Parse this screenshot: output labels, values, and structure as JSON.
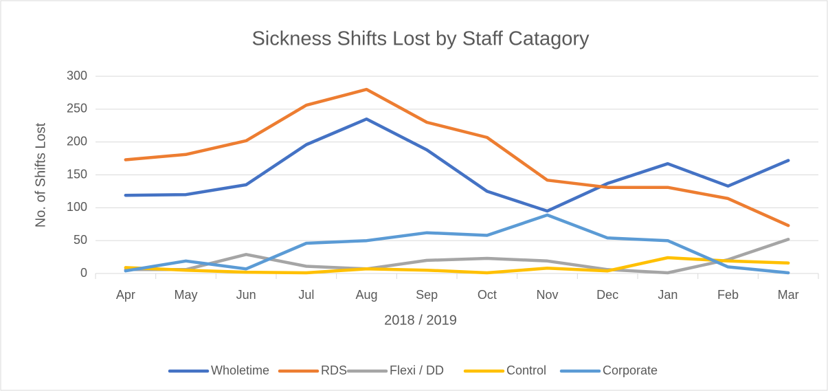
{
  "chart_data": {
    "type": "line",
    "title": "Sickness Shifts Lost by Staff Catagory",
    "x_label": "2018 / 2019",
    "y_label": "No. of Shifts Lost",
    "categories": [
      "Apr",
      "May",
      "Jun",
      "Jul",
      "Aug",
      "Sep",
      "Oct",
      "Nov",
      "Dec",
      "Jan",
      "Feb",
      "Mar"
    ],
    "series": [
      {
        "name": "Wholetime",
        "color": "#4472c4",
        "values": [
          119,
          120,
          135,
          196,
          235,
          188,
          125,
          95,
          137,
          167,
          133,
          172
        ]
      },
      {
        "name": "RDS",
        "color": "#ed7d31",
        "values": [
          173,
          181,
          202,
          256,
          280,
          230,
          207,
          142,
          131,
          131,
          114,
          73
        ]
      },
      {
        "name": "Flexi / DD",
        "color": "#a5a5a5",
        "values": [
          6,
          6,
          29,
          11,
          7,
          20,
          23,
          19,
          6,
          1,
          21,
          52
        ]
      },
      {
        "name": "Control",
        "color": "#ffc000",
        "values": [
          9,
          5,
          2,
          1,
          7,
          5,
          1,
          8,
          4,
          24,
          19,
          16
        ]
      },
      {
        "name": "Corporate",
        "color": "#5b9bd5",
        "values": [
          4,
          19,
          7,
          46,
          50,
          62,
          58,
          89,
          54,
          50,
          10,
          1
        ]
      }
    ],
    "ylim": [
      0,
      300
    ],
    "yticks": [
      0,
      50,
      100,
      150,
      200,
      250,
      300
    ],
    "grid": true,
    "legend": "bottom"
  }
}
